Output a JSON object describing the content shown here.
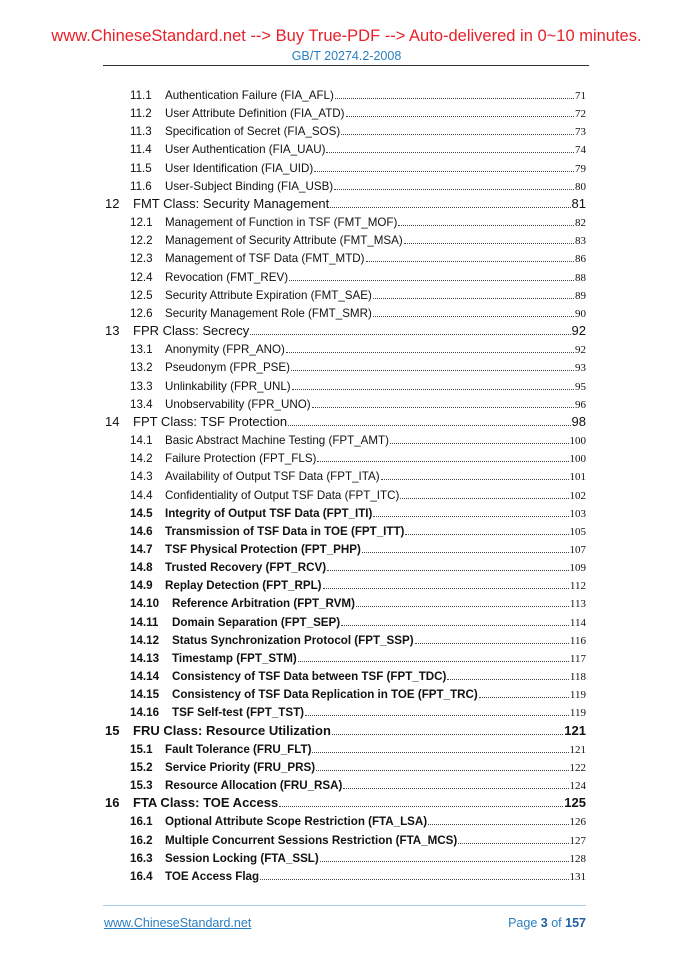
{
  "header": {
    "banner": "www.ChineseStandard.net --> Buy True-PDF --> Auto-delivered in 0~10 minutes.",
    "standard": "GB/T 20274.2-2008"
  },
  "toc": [
    {
      "num": "11.1",
      "title": "Authentication Failure (FIA_AFL)",
      "page": "71",
      "level": 2,
      "bold": false
    },
    {
      "num": "11.2",
      "title": "User Attribute Definition (FIA_ATD)",
      "page": "72",
      "level": 2,
      "bold": false
    },
    {
      "num": "11.3",
      "title": "Specification of Secret (FIA_SOS)",
      "page": "73",
      "level": 2,
      "bold": false
    },
    {
      "num": "11.4",
      "title": "User Authentication (FIA_UAU)",
      "page": "74",
      "level": 2,
      "bold": false
    },
    {
      "num": "11.5",
      "title": "User Identification (FIA_UID)",
      "page": "79",
      "level": 2,
      "bold": false
    },
    {
      "num": "11.6",
      "title": "User-Subject Binding (FIA_USB)",
      "page": "80",
      "level": 2,
      "bold": false
    },
    {
      "num": "12",
      "title": "FMT Class: Security Management",
      "page": "81",
      "level": 1,
      "bold": false
    },
    {
      "num": "12.1",
      "title": "Management of Function in TSF (FMT_MOF)",
      "page": "82",
      "level": 2,
      "bold": false
    },
    {
      "num": "12.2",
      "title": "Management of Security Attribute (FMT_MSA)",
      "page": "83",
      "level": 2,
      "bold": false
    },
    {
      "num": "12.3",
      "title": "Management of TSF Data (FMT_MTD)",
      "page": "86",
      "level": 2,
      "bold": false
    },
    {
      "num": "12.4",
      "title": "Revocation (FMT_REV)",
      "page": "88",
      "level": 2,
      "bold": false
    },
    {
      "num": "12.5",
      "title": "Security Attribute Expiration (FMT_SAE)",
      "page": "89",
      "level": 2,
      "bold": false
    },
    {
      "num": "12.6",
      "title": "Security Management Role (FMT_SMR)",
      "page": "90",
      "level": 2,
      "bold": false
    },
    {
      "num": "13",
      "title": "FPR Class: Secrecy",
      "page": "92",
      "level": 1,
      "bold": false
    },
    {
      "num": "13.1",
      "title": "Anonymity (FPR_ANO)",
      "page": "92",
      "level": 2,
      "bold": false
    },
    {
      "num": "13.2",
      "title": "Pseudonym (FPR_PSE)",
      "page": "93",
      "level": 2,
      "bold": false
    },
    {
      "num": "13.3",
      "title": "Unlinkability (FPR_UNL)",
      "page": "95",
      "level": 2,
      "bold": false
    },
    {
      "num": "13.4",
      "title": "Unobservability (FPR_UNO)",
      "page": "96",
      "level": 2,
      "bold": false
    },
    {
      "num": "14",
      "title": "FPT Class: TSF Protection",
      "page": "98",
      "level": 1,
      "bold": false
    },
    {
      "num": "14.1",
      "title": "Basic Abstract Machine Testing (FPT_AMT)",
      "page": "100",
      "level": 2,
      "bold": false
    },
    {
      "num": "14.2",
      "title": "Failure Protection (FPT_FLS)",
      "page": "100",
      "level": 2,
      "bold": false
    },
    {
      "num": "14.3",
      "title": "Availability of Output TSF Data (FPT_ITA)",
      "page": "101",
      "level": 2,
      "bold": false
    },
    {
      "num": "14.4",
      "title": "Confidentiality of Output TSF Data (FPT_ITC)",
      "page": "102",
      "level": 2,
      "bold": false
    },
    {
      "num": "14.5",
      "title": "Integrity of Output TSF Data (FPT_ITI)",
      "page": "103",
      "level": 2,
      "bold": true
    },
    {
      "num": "14.6",
      "title": "Transmission of TSF Data in TOE (FPT_ITT)",
      "page": "105",
      "level": 2,
      "bold": true
    },
    {
      "num": "14.7",
      "title": "TSF Physical Protection (FPT_PHP)",
      "page": "107",
      "level": 2,
      "bold": true
    },
    {
      "num": "14.8",
      "title": "Trusted Recovery (FPT_RCV)",
      "page": "109",
      "level": 2,
      "bold": true
    },
    {
      "num": "14.9",
      "title": "Replay Detection (FPT_RPL)",
      "page": "112",
      "level": 2,
      "bold": true
    },
    {
      "num": "14.10",
      "title": "Reference Arbitration (FPT_RVM)",
      "page": "113",
      "level": 2,
      "bold": true
    },
    {
      "num": "14.11",
      "title": "Domain Separation (FPT_SEP)",
      "page": "114",
      "level": 2,
      "bold": true
    },
    {
      "num": "14.12",
      "title": "Status Synchronization Protocol (FPT_SSP)",
      "page": "116",
      "level": 2,
      "bold": true
    },
    {
      "num": "14.13",
      "title": "Timestamp (FPT_STM)",
      "page": "117",
      "level": 2,
      "bold": true
    },
    {
      "num": "14.14",
      "title": "Consistency of TSF Data between TSF (FPT_TDC)",
      "page": "118",
      "level": 2,
      "bold": true
    },
    {
      "num": "14.15",
      "title": "Consistency of TSF Data Replication in TOE (FPT_TRC)",
      "page": "119",
      "level": 2,
      "bold": true
    },
    {
      "num": "14.16",
      "title": "TSF Self-test (FPT_TST)",
      "page": "119",
      "level": 2,
      "bold": true
    },
    {
      "num": "15",
      "title": "FRU Class: Resource Utilization",
      "page": "121",
      "level": 1,
      "bold": true
    },
    {
      "num": "15.1",
      "title": "Fault Tolerance (FRU_FLT)",
      "page": "121",
      "level": 2,
      "bold": true
    },
    {
      "num": "15.2",
      "title": "Service Priority (FRU_PRS)",
      "page": "122",
      "level": 2,
      "bold": true
    },
    {
      "num": "15.3",
      "title": "Resource Allocation (FRU_RSA)",
      "page": "124",
      "level": 2,
      "bold": true
    },
    {
      "num": "16",
      "title": "FTA Class: TOE Access",
      "page": "125",
      "level": 1,
      "bold": true
    },
    {
      "num": "16.1",
      "title": "Optional Attribute Scope Restriction (FTA_LSA)",
      "page": "126",
      "level": 2,
      "bold": true
    },
    {
      "num": "16.2",
      "title": "Multiple Concurrent Sessions Restriction (FTA_MCS)",
      "page": "127",
      "level": 2,
      "bold": true
    },
    {
      "num": "16.3",
      "title": "Session Locking (FTA_SSL)",
      "page": "128",
      "level": 2,
      "bold": true
    },
    {
      "num": "16.4",
      "title": "TOE Access Flag",
      "page": "131",
      "level": 2,
      "bold": true
    }
  ],
  "footer": {
    "link": "www.ChineseStandard.net",
    "page_prefix": "Page",
    "page_current": "3",
    "page_of": "of",
    "page_total": "157"
  }
}
